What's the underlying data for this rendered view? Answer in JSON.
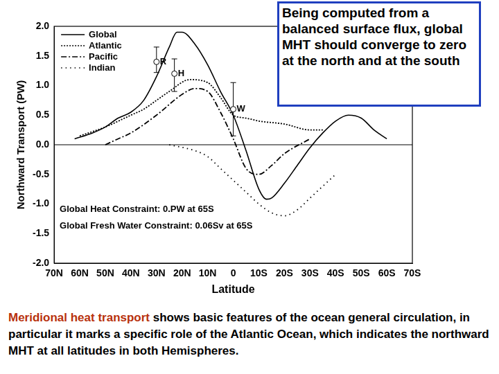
{
  "chart_data": {
    "type": "line",
    "x_label": "Latitude",
    "y_label": "Northward Transport (PW)",
    "xlim": [
      70,
      -70
    ],
    "xticks": [
      {
        "value": 70,
        "label": "70N"
      },
      {
        "value": 60,
        "label": "60N"
      },
      {
        "value": 50,
        "label": "50N"
      },
      {
        "value": 40,
        "label": "40N"
      },
      {
        "value": 30,
        "label": "30N"
      },
      {
        "value": 20,
        "label": "20N"
      },
      {
        "value": 10,
        "label": "10N"
      },
      0,
      {
        "value": -10,
        "label": "10S"
      },
      {
        "value": -20,
        "label": "20S"
      },
      {
        "value": -30,
        "label": "30S"
      },
      {
        "value": -40,
        "label": "40S"
      },
      {
        "value": -50,
        "label": "50S"
      },
      {
        "value": -60,
        "label": "60S"
      },
      {
        "value": -70,
        "label": "70S"
      }
    ],
    "ylim": [
      -2,
      2
    ],
    "yticks": [
      {
        "value": 2,
        "label": "2.0"
      },
      1.5,
      {
        "value": 1,
        "label": "1.0"
      },
      0.5,
      {
        "value": 0,
        "label": "0.0"
      },
      -0.5,
      {
        "value": -1,
        "label": "-1.0"
      },
      -1.5,
      {
        "value": -2,
        "label": "-2.0"
      }
    ],
    "grid": false,
    "legend": "upper left",
    "series": [
      {
        "name": "Global",
        "color": "#000000",
        "line_style": "solid",
        "x": [
          62,
          55,
          50,
          45,
          40,
          35,
          30,
          25,
          22,
          20,
          15,
          10,
          5,
          0,
          -5,
          -10,
          -13,
          -15,
          -20,
          -25,
          -30,
          -35,
          -40,
          -45,
          -50,
          -55,
          -60
        ],
        "values": [
          0.1,
          0.2,
          0.3,
          0.45,
          0.55,
          0.75,
          1.15,
          1.65,
          1.9,
          1.9,
          1.7,
          1.35,
          0.9,
          0.5,
          -0.1,
          -0.75,
          -0.92,
          -0.9,
          -0.65,
          -0.35,
          -0.05,
          0.2,
          0.4,
          0.5,
          0.45,
          0.25,
          0.1
        ]
      },
      {
        "name": "Atlantic",
        "color": "#000000",
        "line_style": "dotted",
        "x": [
          60,
          50,
          40,
          35,
          30,
          25,
          17,
          10,
          5,
          0,
          -5,
          -10,
          -20,
          -30,
          -35
        ],
        "values": [
          0.15,
          0.3,
          0.5,
          0.6,
          0.75,
          0.9,
          1.1,
          1.05,
          0.8,
          0.5,
          0.45,
          0.4,
          0.35,
          0.25,
          0.25
        ]
      },
      {
        "name": "Pacific",
        "color": "#000000",
        "line_style": "dashdot",
        "x": [
          50,
          45,
          40,
          30,
          20,
          15,
          10,
          5,
          0,
          -5,
          -10,
          -15,
          -20,
          -30
        ],
        "values": [
          0,
          0.1,
          0.2,
          0.5,
          0.85,
          0.95,
          0.9,
          0.55,
          0.1,
          -0.4,
          -0.5,
          -0.35,
          -0.15,
          0.1
        ]
      },
      {
        "name": "Indian",
        "color": "#000000",
        "line_style": "loosely_dotted",
        "x": [
          25,
          15,
          10,
          5,
          0,
          -5,
          -10,
          -15,
          -20,
          -25,
          -30,
          -35,
          -40
        ],
        "values": [
          0,
          -0.1,
          -0.2,
          -0.4,
          -0.6,
          -0.8,
          -1.0,
          -1.15,
          -1.2,
          -1.1,
          -0.9,
          -0.7,
          -0.5
        ]
      }
    ],
    "error_bars": [
      {
        "label": "R",
        "x": 30,
        "value": 1.4,
        "low": 1.22,
        "high": 1.65
      },
      {
        "label": "H",
        "x": 23,
        "value": 1.2,
        "low": 0.9,
        "high": 1.45
      },
      {
        "label": "W",
        "x": 0,
        "value": 0.6,
        "low": 0.15,
        "high": 1.05
      }
    ],
    "annotations": [
      "Global Heat Constraint: 0.PW at 65S",
      "Global Fresh Water Constraint: 0.06Sv at 65S"
    ]
  },
  "callout": "Being computed from a balanced surface flux, global MHT should converge to zero at the north and at the south",
  "caption": [
    "Meridional heat transport",
    "shows basic features of the ocean general circulation, in particular it marks a specific role of the Atlantic Ocean, which indicates the northward MHT at all latitudes in both Hemispheres."
  ]
}
